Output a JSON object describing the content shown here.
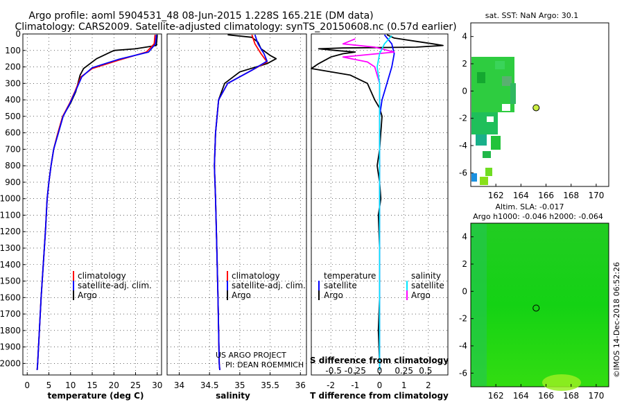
{
  "header": {
    "title_line1": "Argo profile: aoml 5904531_48 08-Jun-2015 1.228S 165.21E (DM data)",
    "title_line2": "Climatology: CARS2009. Satellite-adjusted climatology: synTS_20150608.nc (0.57d earlier)"
  },
  "colors": {
    "argo": "#000000",
    "climatology": "#ff0000",
    "satellite": "#0000ff",
    "cyan": "#00e5ff",
    "magenta": "#ff00ff"
  },
  "chart_data": [
    {
      "type": "line",
      "name": "temperature",
      "xlabel": "temperature (deg C)",
      "xlim": [
        -1,
        31
      ],
      "ylim": [
        0,
        2070
      ],
      "y_reversed": true,
      "x_ticks": [
        0,
        5,
        10,
        15,
        20,
        25,
        30
      ],
      "y_ticks": [
        0,
        100,
        200,
        300,
        400,
        500,
        600,
        700,
        800,
        900,
        1000,
        1100,
        1200,
        1300,
        1400,
        1500,
        1600,
        1700,
        1800,
        1900,
        2000
      ],
      "legend": [
        "climatology",
        "satellite-adj. clim.",
        "Argo"
      ],
      "series": [
        {
          "name": "Argo",
          "color": "#000000",
          "points": [
            [
              30,
              5
            ],
            [
              29.9,
              40
            ],
            [
              29.8,
              70
            ],
            [
              25,
              90
            ],
            [
              20,
              100
            ],
            [
              16,
              150
            ],
            [
              13,
              210
            ],
            [
              12.2,
              250
            ],
            [
              11.2,
              350
            ],
            [
              10,
              420
            ],
            [
              8.2,
              500
            ],
            [
              7.1,
              600
            ],
            [
              6.1,
              700
            ],
            [
              5.5,
              800
            ],
            [
              5.0,
              900
            ],
            [
              4.6,
              1000
            ],
            [
              4.2,
              1200
            ],
            [
              3.7,
              1400
            ],
            [
              3.2,
              1600
            ],
            [
              2.8,
              1800
            ],
            [
              2.4,
              2000
            ],
            [
              2.3,
              2040
            ]
          ]
        },
        {
          "name": "climatology",
          "color": "#ff0000",
          "points": [
            [
              29.5,
              5
            ],
            [
              29.3,
              60
            ],
            [
              27.5,
              110
            ],
            [
              21,
              160
            ],
            [
              15,
              210
            ],
            [
              12.4,
              260
            ],
            [
              11,
              350
            ],
            [
              9.8,
              420
            ],
            [
              8.2,
              500
            ],
            [
              7.1,
              600
            ],
            [
              6.1,
              700
            ],
            [
              5.5,
              800
            ],
            [
              5.0,
              900
            ],
            [
              4.6,
              1000
            ],
            [
              4.2,
              1200
            ],
            [
              3.7,
              1400
            ],
            [
              3.2,
              1600
            ],
            [
              2.8,
              1800
            ],
            [
              2.4,
              2000
            ],
            [
              2.3,
              2040
            ]
          ]
        },
        {
          "name": "satellite-adj. clim.",
          "color": "#0000ff",
          "points": [
            [
              29.8,
              5
            ],
            [
              29.6,
              60
            ],
            [
              28,
              110
            ],
            [
              21,
              155
            ],
            [
              15,
              205
            ],
            [
              12.6,
              260
            ],
            [
              11.1,
              350
            ],
            [
              9.9,
              420
            ],
            [
              8.3,
              500
            ],
            [
              7.2,
              600
            ],
            [
              6.1,
              700
            ],
            [
              5.5,
              800
            ],
            [
              5.0,
              900
            ],
            [
              4.6,
              1000
            ],
            [
              4.2,
              1200
            ],
            [
              3.7,
              1400
            ],
            [
              3.2,
              1600
            ],
            [
              2.8,
              1800
            ],
            [
              2.4,
              2000
            ],
            [
              2.3,
              2040
            ]
          ]
        }
      ]
    },
    {
      "type": "line",
      "name": "salinity",
      "xlabel": "salinity",
      "xlim": [
        33.8,
        36.1
      ],
      "ylim": [
        0,
        2070
      ],
      "y_reversed": true,
      "x_ticks": [
        34,
        34.5,
        35,
        35.5,
        36
      ],
      "legend": [
        "climatology",
        "satellite-adj. clim.",
        "Argo"
      ],
      "annotation": [
        "US ARGO PROJECT",
        "PI: DEAN ROEMMICH"
      ],
      "series": [
        {
          "name": "Argo",
          "color": "#000000",
          "points": [
            [
              34.8,
              5
            ],
            [
              35.2,
              20
            ],
            [
              35.3,
              50
            ],
            [
              35.35,
              90
            ],
            [
              35.5,
              130
            ],
            [
              35.6,
              150
            ],
            [
              35.45,
              180
            ],
            [
              35.0,
              230
            ],
            [
              34.75,
              300
            ],
            [
              34.65,
              400
            ],
            [
              34.6,
              600
            ],
            [
              34.58,
              800
            ],
            [
              34.6,
              1000
            ],
            [
              34.62,
              1300
            ],
            [
              34.64,
              1600
            ],
            [
              34.65,
              1800
            ],
            [
              34.66,
              2000
            ],
            [
              34.67,
              2040
            ]
          ]
        },
        {
          "name": "climatology",
          "color": "#ff0000",
          "points": [
            [
              35.2,
              5
            ],
            [
              35.25,
              60
            ],
            [
              35.35,
              120
            ],
            [
              35.45,
              170
            ],
            [
              35.2,
              220
            ],
            [
              34.8,
              300
            ],
            [
              34.65,
              400
            ],
            [
              34.6,
              600
            ],
            [
              34.58,
              800
            ],
            [
              34.6,
              1000
            ],
            [
              34.62,
              1300
            ],
            [
              34.64,
              1600
            ],
            [
              34.65,
              1800
            ],
            [
              34.66,
              2000
            ],
            [
              34.67,
              2040
            ]
          ]
        },
        {
          "name": "satellite-adj. clim.",
          "color": "#0000ff",
          "points": [
            [
              35.25,
              5
            ],
            [
              35.3,
              60
            ],
            [
              35.4,
              120
            ],
            [
              35.45,
              165
            ],
            [
              35.2,
              220
            ],
            [
              34.8,
              300
            ],
            [
              34.65,
              400
            ],
            [
              34.6,
              600
            ],
            [
              34.58,
              800
            ],
            [
              34.6,
              1000
            ],
            [
              34.62,
              1300
            ],
            [
              34.64,
              1600
            ],
            [
              34.65,
              1800
            ],
            [
              34.66,
              2000
            ],
            [
              34.67,
              2040
            ]
          ]
        }
      ]
    },
    {
      "type": "line",
      "name": "difference",
      "xlabel": "T difference from climatology",
      "x2label": "S difference from climatology",
      "xlim": [
        -2.8,
        2.8
      ],
      "ylim": [
        0,
        2070
      ],
      "y_reversed": true,
      "x_ticks": [
        -2,
        -1,
        0,
        1,
        2
      ],
      "x2_ticks": [
        "-0.5",
        "-0.25",
        "0",
        "0.25",
        "0.5"
      ],
      "legend_temperature": {
        "title": "temperature",
        "items": [
          "satellite",
          "Argo"
        ]
      },
      "legend_salinity": {
        "title": "salinity",
        "items": [
          "satellite",
          "Argo"
        ]
      },
      "series": [
        {
          "name": "Argo T diff",
          "color": "#000000",
          "points": [
            [
              0.3,
              5
            ],
            [
              0.6,
              25
            ],
            [
              1.5,
              45
            ],
            [
              2.2,
              60
            ],
            [
              2.6,
              70
            ],
            [
              1.5,
              80
            ],
            [
              -1.5,
              85
            ],
            [
              -2.5,
              90
            ],
            [
              -1.8,
              100
            ],
            [
              -1.0,
              110
            ],
            [
              -1.5,
              120
            ],
            [
              -2.0,
              140
            ],
            [
              -2.5,
              180
            ],
            [
              -2.8,
              210
            ],
            [
              -1.2,
              250
            ],
            [
              -0.5,
              300
            ],
            [
              -0.2,
              400
            ],
            [
              0,
              450
            ],
            [
              0.1,
              500
            ],
            [
              0,
              700
            ],
            [
              -0.1,
              800
            ],
            [
              0,
              900
            ],
            [
              0.05,
              1000
            ],
            [
              -0.05,
              1100
            ],
            [
              0,
              1300
            ],
            [
              0,
              1600
            ],
            [
              -0.05,
              1800
            ],
            [
              0,
              2000
            ],
            [
              0,
              2040
            ]
          ]
        },
        {
          "name": "satellite T diff",
          "color": "#0000ff",
          "points": [
            [
              0.2,
              5
            ],
            [
              0.5,
              60
            ],
            [
              0.6,
              120
            ],
            [
              0.5,
              200
            ],
            [
              0.3,
              300
            ],
            [
              0.1,
              400
            ],
            [
              0,
              500
            ],
            [
              0,
              2040
            ]
          ]
        },
        {
          "name": "Argo S diff",
          "color": "#ff00ff",
          "points": [
            [
              -1.0,
              30
            ],
            [
              -1.5,
              60
            ],
            [
              -0.2,
              80
            ],
            [
              0.6,
              110
            ],
            [
              -1.5,
              140
            ],
            [
              -0.5,
              170
            ],
            [
              -0.2,
              200
            ],
            [
              0,
              300
            ],
            [
              0,
              2040
            ]
          ]
        },
        {
          "name": "satellite S diff",
          "color": "#00e5ff",
          "points": [
            [
              0.5,
              10
            ],
            [
              0.2,
              60
            ],
            [
              0,
              120
            ],
            [
              -0.1,
              200
            ],
            [
              0,
              300
            ],
            [
              0,
              2040
            ]
          ]
        }
      ]
    },
    {
      "type": "heatmap",
      "name": "sst-map",
      "title": "sat. SST: NaN Argo: 30.1",
      "xlim": [
        160,
        171
      ],
      "ylim": [
        -7,
        5
      ],
      "x_ticks": [
        162,
        164,
        166,
        168,
        170
      ],
      "y_ticks": [
        4,
        2,
        0,
        -2,
        -4,
        -6
      ],
      "argo_position": [
        165.21,
        -1.228
      ]
    },
    {
      "type": "heatmap",
      "name": "sla-map",
      "title": "Altim. SLA: -0.017",
      "subtitle": "Argo h1000: -0.046 h2000: -0.064",
      "xlim": [
        160,
        171
      ],
      "ylim": [
        -7,
        5
      ],
      "x_ticks": [
        162,
        164,
        166,
        168,
        170
      ],
      "y_ticks": [
        4,
        2,
        0,
        -2,
        -4,
        -6
      ],
      "argo_position": [
        165.21,
        -1.228
      ]
    }
  ],
  "watermark": "©IMOS 14-Dec-2018 06:52:26"
}
